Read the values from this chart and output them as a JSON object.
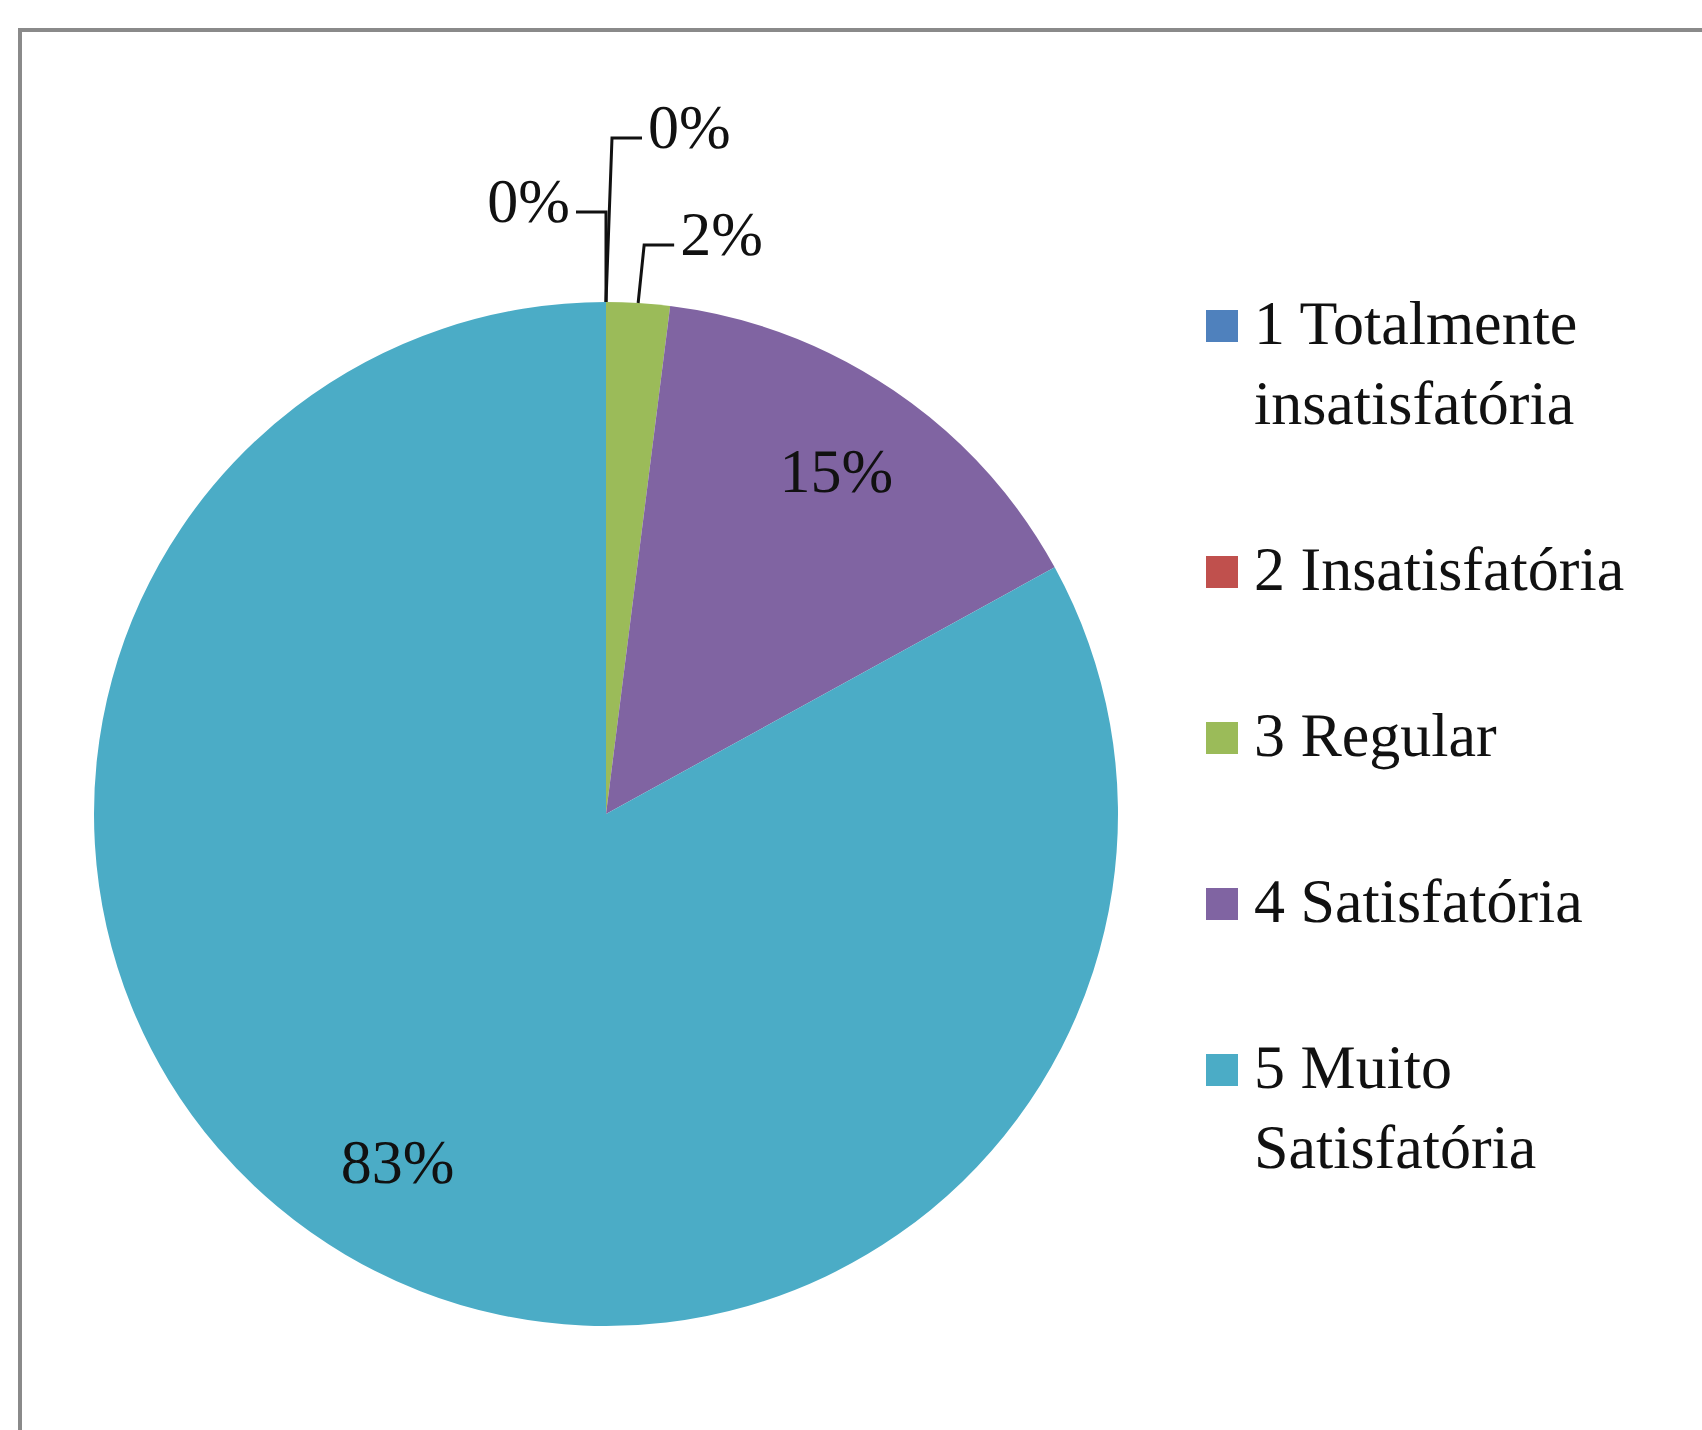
{
  "chart_data": {
    "type": "pie",
    "categories": [
      "1 Totalmente insatisfatória",
      "2 Insatisfatória",
      "3 Regular",
      "4 Satisfatória",
      "5 Muito Satisfatória"
    ],
    "values": [
      0,
      0,
      2,
      15,
      83
    ],
    "value_labels": [
      "0%",
      "0%",
      "2%",
      "15%",
      "83%"
    ],
    "colors": [
      "#4f81bd",
      "#c0504d",
      "#9bbb59",
      "#8064a2",
      "#4bacc6"
    ],
    "legend": "right"
  }
}
